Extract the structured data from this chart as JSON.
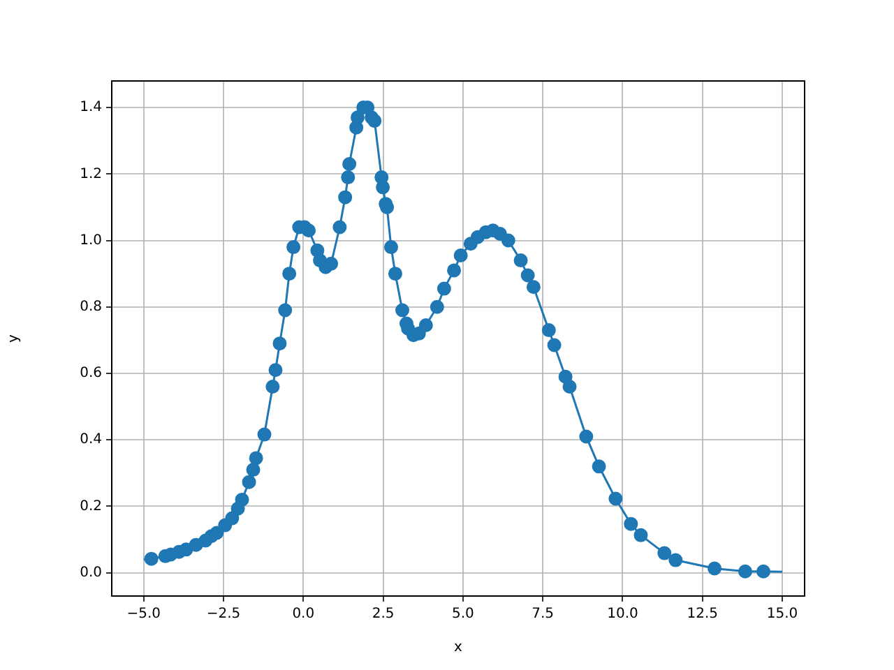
{
  "chart_data": {
    "type": "scatter",
    "xlabel": "x",
    "ylabel": "y",
    "xlim": [
      -6.0,
      15.7
    ],
    "ylim": [
      -0.07,
      1.48
    ],
    "xticks": [
      {
        "value": -5,
        "label": "−5.0"
      },
      {
        "value": -2.5,
        "label": "−2.5"
      },
      {
        "value": 0,
        "label": "0.0"
      },
      {
        "value": 2.5,
        "label": "2.5"
      },
      {
        "value": 5,
        "label": "5.0"
      },
      {
        "value": 7.5,
        "label": "7.5"
      },
      {
        "value": 10,
        "label": "10.0"
      },
      {
        "value": 12.5,
        "label": "12.5"
      },
      {
        "value": 15,
        "label": "15.0"
      }
    ],
    "yticks": [
      {
        "value": 0,
        "label": "0.0"
      },
      {
        "value": 0.2,
        "label": "0.2"
      },
      {
        "value": 0.4,
        "label": "0.4"
      },
      {
        "value": 0.6,
        "label": "0.6"
      },
      {
        "value": 0.8,
        "label": "0.8"
      },
      {
        "value": 1.0,
        "label": "1.0"
      },
      {
        "value": 1.2,
        "label": "1.2"
      },
      {
        "value": 1.4,
        "label": "1.4"
      }
    ],
    "grid": true,
    "series": [
      {
        "type": "line",
        "color": "#1f77b4",
        "line_style": "solid",
        "marker": "none",
        "x": [
          -5,
          -4.76,
          -4.32,
          -4.15,
          -3.89,
          -3.67,
          -3.36,
          -3.06,
          -2.88,
          -2.71,
          -2.45,
          -2.23,
          -2.05,
          -1.92,
          -1.7,
          -1.57,
          -1.48,
          -1.22,
          -0.96,
          -0.87,
          -0.74,
          -0.57,
          -0.44,
          -0.31,
          -0.13,
          0.04,
          0.17,
          0.44,
          0.52,
          0.7,
          0.87,
          1.14,
          1.31,
          1.4,
          1.44,
          1.66,
          1.7,
          1.88,
          2.01,
          2.14,
          2.23,
          2.45,
          2.49,
          2.58,
          2.62,
          2.75,
          2.88,
          3.1,
          3.23,
          3.28,
          3.45,
          3.62,
          3.84,
          4.19,
          4.41,
          4.72,
          4.93,
          5.24,
          5.46,
          5.72,
          5.94,
          6.16,
          6.42,
          6.81,
          7.03,
          7.21,
          7.69,
          7.86,
          8.21,
          8.34,
          8.86,
          9.26,
          9.78,
          10.26,
          10.57,
          11.31,
          11.66,
          12.88,
          13.84,
          14.41,
          15
        ],
        "values": [
          0.04,
          0.042,
          0.05,
          0.055,
          0.063,
          0.07,
          0.084,
          0.097,
          0.11,
          0.12,
          0.143,
          0.164,
          0.193,
          0.22,
          0.273,
          0.31,
          0.345,
          0.416,
          0.56,
          0.61,
          0.69,
          0.79,
          0.9,
          0.98,
          1.04,
          1.04,
          1.03,
          0.97,
          0.94,
          0.92,
          0.93,
          1.04,
          1.13,
          1.19,
          1.23,
          1.34,
          1.37,
          1.4,
          1.4,
          1.37,
          1.36,
          1.19,
          1.16,
          1.11,
          1.1,
          0.98,
          0.9,
          0.79,
          0.75,
          0.735,
          0.715,
          0.72,
          0.745,
          0.8,
          0.855,
          0.91,
          0.955,
          0.99,
          1.01,
          1.025,
          1.03,
          1.02,
          1.0,
          0.94,
          0.895,
          0.86,
          0.73,
          0.685,
          0.59,
          0.56,
          0.41,
          0.32,
          0.223,
          0.147,
          0.113,
          0.059,
          0.038,
          0.013,
          0.004,
          0.004,
          0.003
        ]
      },
      {
        "type": "scatter",
        "color": "#1f77b4",
        "marker": "circle",
        "x": [
          -4.76,
          -4.32,
          -4.15,
          -3.89,
          -3.67,
          -3.36,
          -3.06,
          -2.88,
          -2.71,
          -2.45,
          -2.23,
          -2.05,
          -1.92,
          -1.7,
          -1.57,
          -1.48,
          -1.22,
          -0.96,
          -0.87,
          -0.74,
          -0.57,
          -0.44,
          -0.31,
          -0.13,
          0.04,
          0.17,
          0.44,
          0.52,
          0.7,
          0.87,
          1.14,
          1.31,
          1.4,
          1.44,
          1.66,
          1.7,
          1.88,
          2.01,
          2.14,
          2.23,
          2.45,
          2.49,
          2.58,
          2.62,
          2.75,
          2.88,
          3.1,
          3.23,
          3.28,
          3.45,
          3.62,
          3.84,
          4.19,
          4.41,
          4.72,
          4.93,
          5.24,
          5.46,
          5.72,
          5.94,
          6.16,
          6.42,
          6.81,
          7.03,
          7.21,
          7.69,
          7.86,
          8.21,
          8.34,
          8.86,
          9.26,
          9.78,
          10.26,
          10.57,
          11.31,
          11.66,
          12.88,
          13.84,
          14.41
        ],
        "values": [
          0.042,
          0.05,
          0.055,
          0.063,
          0.07,
          0.084,
          0.097,
          0.11,
          0.12,
          0.143,
          0.164,
          0.193,
          0.22,
          0.273,
          0.31,
          0.345,
          0.416,
          0.56,
          0.61,
          0.69,
          0.79,
          0.9,
          0.98,
          1.04,
          1.04,
          1.03,
          0.97,
          0.94,
          0.92,
          0.93,
          1.04,
          1.13,
          1.19,
          1.23,
          1.34,
          1.37,
          1.4,
          1.4,
          1.37,
          1.36,
          1.19,
          1.16,
          1.11,
          1.1,
          0.98,
          0.9,
          0.79,
          0.75,
          0.735,
          0.715,
          0.72,
          0.745,
          0.8,
          0.855,
          0.91,
          0.955,
          0.99,
          1.01,
          1.025,
          1.03,
          1.02,
          1.0,
          0.94,
          0.895,
          0.86,
          0.73,
          0.685,
          0.59,
          0.56,
          0.41,
          0.32,
          0.223,
          0.147,
          0.113,
          0.059,
          0.038,
          0.013,
          0.004,
          0.004
        ]
      }
    ]
  }
}
